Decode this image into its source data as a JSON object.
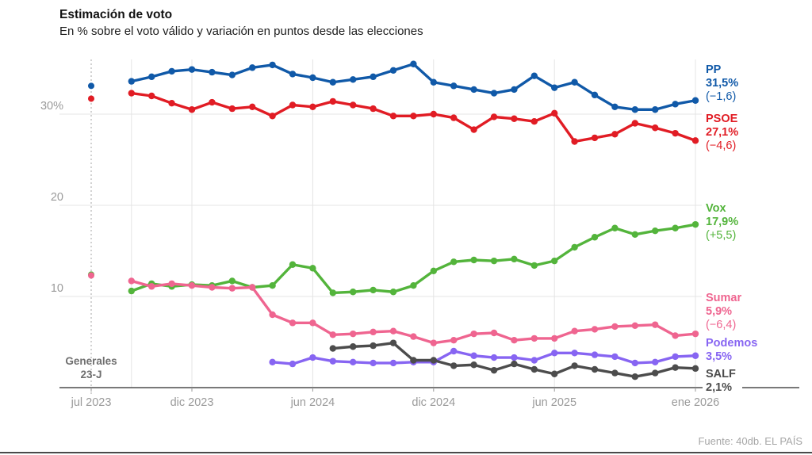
{
  "header": {
    "title": "Estimación de voto",
    "subtitle": "En % sobre el voto válido y variación en puntos desde las elecciones"
  },
  "footer": {
    "source": "Fuente: 40db. EL PAÍS"
  },
  "annotations": {
    "election_line1": "Generales",
    "election_line2": "23-J"
  },
  "colors": {
    "grid": "#e4e4e4",
    "axis": "#4d4d4d",
    "tick_label": "#9a9a9a",
    "election_dashed": "#b3b3b3",
    "election_text": "#6f6f6f"
  },
  "chart_data": {
    "type": "line",
    "title": "Estimación de voto",
    "subtitle": "En % sobre el voto válido y variación en puntos desde las elecciones",
    "x_unit": "months since jul 2023, monthly polls sep 2023 - ene 2026",
    "ylim": [
      0,
      36.5
    ],
    "grid": true,
    "legend_position": "right",
    "x_ticks": [
      {
        "m": 0,
        "label": "jul 2023"
      },
      {
        "m": 5,
        "label": "dic 2023"
      },
      {
        "m": 11,
        "label": "jun 2024"
      },
      {
        "m": 17,
        "label": "dic 2024"
      },
      {
        "m": 23,
        "label": "jun 2025"
      },
      {
        "m": 30,
        "label": "ene 2026"
      }
    ],
    "grid_v_months": [
      2,
      5,
      11,
      17,
      23,
      30
    ],
    "y_ticks": [
      {
        "v": 10,
        "label": "10"
      },
      {
        "v": 20,
        "label": "20"
      },
      {
        "v": 30,
        "label": "30%"
      }
    ],
    "election": {
      "m": 0,
      "label": "Generales 23-J"
    },
    "series": [
      {
        "name": "PP",
        "color": "#1059a8",
        "value_label": "31,5%",
        "change_label": "(−1,6)",
        "election_value": 33.1,
        "start_month": 2,
        "values": [
          33.6,
          34.1,
          34.7,
          34.9,
          34.6,
          34.3,
          35.1,
          35.4,
          34.4,
          34.0,
          33.5,
          33.8,
          34.1,
          34.8,
          35.5,
          33.5,
          33.1,
          32.7,
          32.3,
          32.7,
          34.2,
          32.9,
          33.5,
          32.1,
          30.8,
          30.5,
          30.5,
          31.1,
          31.5
        ]
      },
      {
        "name": "PSOE",
        "color": "#e11c24",
        "value_label": "27,1%",
        "change_label": "(−4,6)",
        "election_value": 31.7,
        "start_month": 2,
        "values": [
          32.3,
          32.0,
          31.2,
          30.5,
          31.3,
          30.6,
          30.8,
          29.8,
          31.0,
          30.8,
          31.4,
          31.0,
          30.6,
          29.8,
          29.8,
          30.0,
          29.6,
          28.3,
          29.7,
          29.5,
          29.2,
          30.1,
          27.0,
          27.4,
          27.8,
          29.0,
          28.5,
          27.9,
          27.1
        ]
      },
      {
        "name": "Vox",
        "color": "#53b43b",
        "value_label": "17,9%",
        "change_label": "(+5,5)",
        "election_value": 12.4,
        "start_month": 2,
        "values": [
          10.6,
          11.4,
          11.1,
          11.3,
          11.2,
          11.7,
          11.0,
          11.2,
          13.5,
          13.1,
          10.4,
          10.5,
          10.7,
          10.5,
          11.2,
          12.8,
          13.8,
          14.0,
          13.9,
          14.1,
          13.4,
          13.9,
          15.4,
          16.5,
          17.5,
          16.8,
          17.2,
          17.5,
          17.9
        ]
      },
      {
        "name": "Sumar",
        "color": "#ef6590",
        "value_label": "5,9%",
        "change_label": "(−6,4)",
        "election_value": 12.3,
        "start_month": 2,
        "values": [
          11.7,
          11.1,
          11.4,
          11.2,
          11.0,
          10.9,
          11.0,
          8.0,
          7.1,
          7.1,
          5.8,
          5.9,
          6.1,
          6.2,
          5.6,
          4.9,
          5.2,
          5.9,
          6.0,
          5.2,
          5.4,
          5.4,
          6.2,
          6.4,
          6.7,
          6.8,
          6.9,
          5.7,
          5.9
        ]
      },
      {
        "name": "Podemos",
        "color": "#8765f2",
        "value_label": "3,5%",
        "change_label": null,
        "election_value": null,
        "start_month": 9,
        "values": [
          2.8,
          2.6,
          3.3,
          2.9,
          2.8,
          2.7,
          2.7,
          2.8,
          2.8,
          4.0,
          3.5,
          3.3,
          3.3,
          3.0,
          3.8,
          3.8,
          3.6,
          3.4,
          2.7,
          2.8,
          3.4,
          3.5
        ]
      },
      {
        "name": "SALF",
        "color": "#4c4c4c",
        "value_label": "2,1%",
        "change_label": null,
        "election_value": null,
        "start_month": 12,
        "values": [
          4.3,
          4.5,
          4.6,
          4.9,
          3.0,
          3.0,
          2.4,
          2.5,
          1.9,
          2.6,
          2.0,
          1.5,
          2.4,
          2.0,
          1.6,
          1.2,
          1.6,
          2.2,
          2.1
        ]
      }
    ]
  }
}
